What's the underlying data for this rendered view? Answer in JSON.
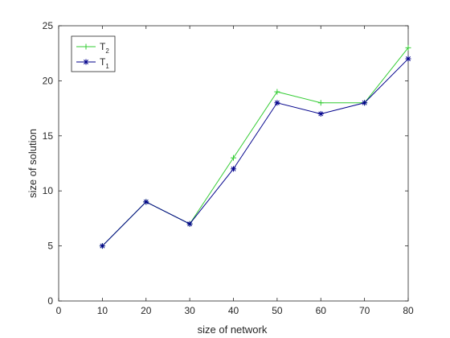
{
  "chart_data": {
    "type": "line",
    "xlabel": "size of network",
    "ylabel": "size of solution",
    "xlim": [
      0,
      80
    ],
    "ylim": [
      0,
      25
    ],
    "xticks": [
      "0",
      "10",
      "20",
      "30",
      "40",
      "50",
      "60",
      "70",
      "80"
    ],
    "yticks": [
      "0",
      "5",
      "10",
      "15",
      "20",
      "25"
    ],
    "grid": false,
    "legend_position": "top-left",
    "series": [
      {
        "name": "T",
        "subscript": "2",
        "color": "#33cc33",
        "marker": "plus",
        "x": [
          10,
          20,
          30,
          40,
          50,
          60,
          70,
          80
        ],
        "y": [
          5,
          9,
          7,
          13,
          19,
          18,
          18,
          23
        ]
      },
      {
        "name": "T",
        "subscript": "1",
        "color": "#00008b",
        "marker": "asterisk",
        "x": [
          10,
          20,
          30,
          40,
          50,
          60,
          70,
          80
        ],
        "y": [
          5,
          9,
          7,
          12,
          18,
          17,
          18,
          22
        ]
      }
    ]
  }
}
